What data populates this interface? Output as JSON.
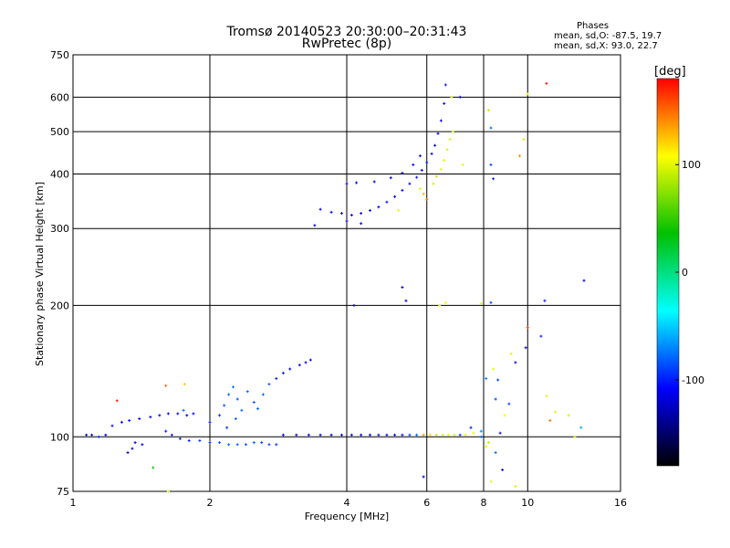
{
  "header": {
    "title": "Tromsø 20140523 20:30:00–20:31:43",
    "subtitle": "RwPretec (8p)"
  },
  "phases": {
    "heading": "Phases",
    "o_line": "mean, sd,O: -87.5, 19.7",
    "x_line": "mean, sd,X:  93.0, 22.7"
  },
  "colorbar": {
    "label": "[deg]",
    "ticks": [
      "100",
      "0",
      "-100"
    ],
    "tick_values": [
      100,
      0,
      -100
    ],
    "range": [
      -180,
      180
    ],
    "stops": [
      "#ff0000",
      "#ffff00",
      "#00c000",
      "#00ffff",
      "#0000ff",
      "#000000"
    ]
  },
  "chart_data": {
    "type": "scatter",
    "title": "Tromsø 20140523 20:30:00–20:31:43",
    "subtitle": "RwPretec (8p)",
    "xlabel": "Frequency [MHz]",
    "ylabel": "Stationary phase Virtual Height [km]",
    "xscale": "log2",
    "yscale": "log",
    "xlim": [
      1,
      16
    ],
    "ylim": [
      75,
      750
    ],
    "x_ticks": [
      1,
      2,
      4,
      6,
      8,
      10,
      16
    ],
    "x_tick_labels": [
      "1",
      "2",
      "4",
      "6",
      "8",
      "10",
      "16"
    ],
    "y_ticks": [
      75,
      100,
      200,
      300,
      400,
      500,
      600,
      750
    ],
    "y_tick_labels": [
      "75",
      "100",
      "200",
      "300",
      "400",
      "500",
      "600",
      "750"
    ],
    "grid": true,
    "color_scale": "phase [deg], -180 to 180",
    "points": [
      {
        "x": 1.07,
        "y": 101,
        "c": -120
      },
      {
        "x": 1.1,
        "y": 101,
        "c": -120
      },
      {
        "x": 1.14,
        "y": 100,
        "c": -95
      },
      {
        "x": 1.18,
        "y": 101,
        "c": -110
      },
      {
        "x": 1.22,
        "y": 106,
        "c": -105
      },
      {
        "x": 1.28,
        "y": 108,
        "c": -110
      },
      {
        "x": 1.33,
        "y": 109,
        "c": -110
      },
      {
        "x": 1.4,
        "y": 110,
        "c": -110
      },
      {
        "x": 1.48,
        "y": 111,
        "c": -110
      },
      {
        "x": 1.55,
        "y": 112,
        "c": -110
      },
      {
        "x": 1.62,
        "y": 113,
        "c": -105
      },
      {
        "x": 1.7,
        "y": 113,
        "c": -105
      },
      {
        "x": 1.78,
        "y": 112,
        "c": -110
      },
      {
        "x": 1.84,
        "y": 113,
        "c": -110
      },
      {
        "x": 1.35,
        "y": 94,
        "c": -120
      },
      {
        "x": 1.37,
        "y": 97,
        "c": -115
      },
      {
        "x": 1.42,
        "y": 96,
        "c": -110
      },
      {
        "x": 1.32,
        "y": 92,
        "c": -120
      },
      {
        "x": 1.6,
        "y": 103,
        "c": -100
      },
      {
        "x": 1.65,
        "y": 101,
        "c": -100
      },
      {
        "x": 1.72,
        "y": 99,
        "c": -95
      },
      {
        "x": 1.8,
        "y": 98,
        "c": -95
      },
      {
        "x": 1.9,
        "y": 98,
        "c": -90
      },
      {
        "x": 2.0,
        "y": 97,
        "c": -95
      },
      {
        "x": 2.1,
        "y": 97,
        "c": -85
      },
      {
        "x": 2.2,
        "y": 96,
        "c": -80
      },
      {
        "x": 2.3,
        "y": 96,
        "c": -80
      },
      {
        "x": 2.4,
        "y": 96,
        "c": -85
      },
      {
        "x": 2.5,
        "y": 97,
        "c": -80
      },
      {
        "x": 2.6,
        "y": 97,
        "c": -90
      },
      {
        "x": 2.7,
        "y": 96,
        "c": -90
      },
      {
        "x": 2.8,
        "y": 96,
        "c": -95
      },
      {
        "x": 2.0,
        "y": 108,
        "c": -100
      },
      {
        "x": 2.1,
        "y": 112,
        "c": -95
      },
      {
        "x": 2.15,
        "y": 118,
        "c": -85
      },
      {
        "x": 2.2,
        "y": 125,
        "c": -80
      },
      {
        "x": 2.25,
        "y": 130,
        "c": -75
      },
      {
        "x": 2.3,
        "y": 122,
        "c": -85
      },
      {
        "x": 2.35,
        "y": 115,
        "c": -80
      },
      {
        "x": 2.42,
        "y": 127,
        "c": -80
      },
      {
        "x": 2.5,
        "y": 120,
        "c": -85
      },
      {
        "x": 2.55,
        "y": 116,
        "c": -80
      },
      {
        "x": 2.62,
        "y": 125,
        "c": -80
      },
      {
        "x": 2.7,
        "y": 132,
        "c": -85
      },
      {
        "x": 2.8,
        "y": 136,
        "c": -100
      },
      {
        "x": 2.9,
        "y": 140,
        "c": -100
      },
      {
        "x": 3.0,
        "y": 143,
        "c": -110
      },
      {
        "x": 3.15,
        "y": 146,
        "c": -110
      },
      {
        "x": 3.25,
        "y": 148,
        "c": -110
      },
      {
        "x": 3.33,
        "y": 150,
        "c": -110
      },
      {
        "x": 2.18,
        "y": 105,
        "c": -95
      },
      {
        "x": 2.28,
        "y": 110,
        "c": -80
      },
      {
        "x": 2.9,
        "y": 101,
        "c": -110
      },
      {
        "x": 3.1,
        "y": 101,
        "c": -110
      },
      {
        "x": 3.3,
        "y": 101,
        "c": -110
      },
      {
        "x": 3.5,
        "y": 101,
        "c": -115
      },
      {
        "x": 3.7,
        "y": 101,
        "c": -115
      },
      {
        "x": 3.9,
        "y": 101,
        "c": -115
      },
      {
        "x": 4.1,
        "y": 101,
        "c": -115
      },
      {
        "x": 4.3,
        "y": 101,
        "c": -115
      },
      {
        "x": 4.5,
        "y": 101,
        "c": -115
      },
      {
        "x": 4.7,
        "y": 101,
        "c": -110
      },
      {
        "x": 4.9,
        "y": 101,
        "c": -110
      },
      {
        "x": 5.1,
        "y": 101,
        "c": -110
      },
      {
        "x": 5.3,
        "y": 101,
        "c": -105
      },
      {
        "x": 5.5,
        "y": 101,
        "c": -90
      },
      {
        "x": 5.7,
        "y": 101,
        "c": -80
      },
      {
        "x": 5.9,
        "y": 101,
        "c": 140
      },
      {
        "x": 6.1,
        "y": 101,
        "c": 120
      },
      {
        "x": 6.3,
        "y": 101,
        "c": 90
      },
      {
        "x": 6.5,
        "y": 101,
        "c": 95
      },
      {
        "x": 6.7,
        "y": 101,
        "c": 100
      },
      {
        "x": 6.9,
        "y": 101,
        "c": 95
      },
      {
        "x": 7.1,
        "y": 101,
        "c": -90
      },
      {
        "x": 7.3,
        "y": 101,
        "c": 100
      },
      {
        "x": 7.6,
        "y": 102,
        "c": 100
      },
      {
        "x": 7.9,
        "y": 103,
        "c": -70
      },
      {
        "x": 1.6,
        "y": 131,
        "c": 150
      },
      {
        "x": 1.76,
        "y": 132,
        "c": 125
      },
      {
        "x": 1.25,
        "y": 121,
        "c": 170
      },
      {
        "x": 1.62,
        "y": 75,
        "c": 95
      },
      {
        "x": 1.5,
        "y": 85,
        "c": 40
      },
      {
        "x": 1.75,
        "y": 115,
        "c": -80
      },
      {
        "x": 3.5,
        "y": 332,
        "c": -110
      },
      {
        "x": 3.7,
        "y": 327,
        "c": -115
      },
      {
        "x": 3.9,
        "y": 325,
        "c": -115
      },
      {
        "x": 4.1,
        "y": 322,
        "c": -110
      },
      {
        "x": 4.3,
        "y": 325,
        "c": -110
      },
      {
        "x": 4.5,
        "y": 330,
        "c": -105
      },
      {
        "x": 4.7,
        "y": 336,
        "c": -110
      },
      {
        "x": 4.9,
        "y": 345,
        "c": -105
      },
      {
        "x": 5.1,
        "y": 355,
        "c": -110
      },
      {
        "x": 5.3,
        "y": 367,
        "c": -110
      },
      {
        "x": 5.5,
        "y": 380,
        "c": -110
      },
      {
        "x": 5.7,
        "y": 393,
        "c": -100
      },
      {
        "x": 5.85,
        "y": 408,
        "c": -110
      },
      {
        "x": 6.0,
        "y": 425,
        "c": -100
      },
      {
        "x": 6.15,
        "y": 445,
        "c": -110
      },
      {
        "x": 6.25,
        "y": 465,
        "c": -110
      },
      {
        "x": 6.35,
        "y": 495,
        "c": -110
      },
      {
        "x": 6.45,
        "y": 530,
        "c": -110
      },
      {
        "x": 6.55,
        "y": 580,
        "c": -110
      },
      {
        "x": 6.6,
        "y": 640,
        "c": -100
      },
      {
        "x": 4.0,
        "y": 380,
        "c": -110
      },
      {
        "x": 4.2,
        "y": 382,
        "c": -110
      },
      {
        "x": 4.6,
        "y": 384,
        "c": -110
      },
      {
        "x": 5.0,
        "y": 392,
        "c": -110
      },
      {
        "x": 5.3,
        "y": 402,
        "c": -110
      },
      {
        "x": 5.6,
        "y": 420,
        "c": -110
      },
      {
        "x": 5.8,
        "y": 440,
        "c": -110
      },
      {
        "x": 4.0,
        "y": 312,
        "c": -110
      },
      {
        "x": 4.3,
        "y": 308,
        "c": -110
      },
      {
        "x": 3.4,
        "y": 305,
        "c": -110
      },
      {
        "x": 6.2,
        "y": 380,
        "c": 95
      },
      {
        "x": 6.3,
        "y": 395,
        "c": 90
      },
      {
        "x": 6.45,
        "y": 410,
        "c": 100
      },
      {
        "x": 6.55,
        "y": 430,
        "c": 100
      },
      {
        "x": 6.65,
        "y": 455,
        "c": 95
      },
      {
        "x": 6.75,
        "y": 480,
        "c": 95
      },
      {
        "x": 6.85,
        "y": 500,
        "c": 100
      },
      {
        "x": 5.8,
        "y": 370,
        "c": 100
      },
      {
        "x": 5.9,
        "y": 360,
        "c": 130
      },
      {
        "x": 6.0,
        "y": 350,
        "c": 150
      },
      {
        "x": 5.2,
        "y": 330,
        "c": 100
      },
      {
        "x": 7.1,
        "y": 600,
        "c": -110
      },
      {
        "x": 6.8,
        "y": 600,
        "c": 100
      },
      {
        "x": 7.2,
        "y": 420,
        "c": 100
      },
      {
        "x": 8.2,
        "y": 560,
        "c": 90
      },
      {
        "x": 8.3,
        "y": 510,
        "c": -80
      },
      {
        "x": 8.4,
        "y": 390,
        "c": -100
      },
      {
        "x": 8.3,
        "y": 420,
        "c": -90
      },
      {
        "x": 9.8,
        "y": 480,
        "c": 95
      },
      {
        "x": 9.6,
        "y": 440,
        "c": 140
      },
      {
        "x": 10.0,
        "y": 610,
        "c": 105
      },
      {
        "x": 11.0,
        "y": 645,
        "c": 175
      },
      {
        "x": 4.15,
        "y": 200,
        "c": -120
      },
      {
        "x": 5.3,
        "y": 220,
        "c": -110
      },
      {
        "x": 5.4,
        "y": 205,
        "c": -120
      },
      {
        "x": 6.4,
        "y": 200,
        "c": 100
      },
      {
        "x": 6.6,
        "y": 203,
        "c": 100
      },
      {
        "x": 7.9,
        "y": 202,
        "c": 100
      },
      {
        "x": 8.3,
        "y": 203,
        "c": -90
      },
      {
        "x": 10.9,
        "y": 205,
        "c": -100
      },
      {
        "x": 13.3,
        "y": 228,
        "c": -120
      },
      {
        "x": 10.0,
        "y": 178,
        "c": 160
      },
      {
        "x": 9.9,
        "y": 160,
        "c": -110
      },
      {
        "x": 10.7,
        "y": 170,
        "c": -100
      },
      {
        "x": 8.4,
        "y": 143,
        "c": 100
      },
      {
        "x": 8.6,
        "y": 135,
        "c": -90
      },
      {
        "x": 9.2,
        "y": 155,
        "c": 100
      },
      {
        "x": 9.4,
        "y": 148,
        "c": -110
      },
      {
        "x": 8.1,
        "y": 136,
        "c": -70
      },
      {
        "x": 8.5,
        "y": 122,
        "c": -90
      },
      {
        "x": 9.1,
        "y": 119,
        "c": -90
      },
      {
        "x": 8.9,
        "y": 112,
        "c": 110
      },
      {
        "x": 11.0,
        "y": 124,
        "c": 100
      },
      {
        "x": 11.2,
        "y": 109,
        "c": 150
      },
      {
        "x": 11.5,
        "y": 114,
        "c": 100
      },
      {
        "x": 12.3,
        "y": 112,
        "c": 95
      },
      {
        "x": 12.7,
        "y": 100,
        "c": 100
      },
      {
        "x": 13.1,
        "y": 105,
        "c": -60
      },
      {
        "x": 8.1,
        "y": 95,
        "c": 100
      },
      {
        "x": 8.2,
        "y": 97,
        "c": 90
      },
      {
        "x": 8.5,
        "y": 92,
        "c": -80
      },
      {
        "x": 8.7,
        "y": 102,
        "c": -110
      },
      {
        "x": 7.9,
        "y": 100,
        "c": -80
      },
      {
        "x": 8.8,
        "y": 84,
        "c": -110
      },
      {
        "x": 9.4,
        "y": 77,
        "c": 95
      },
      {
        "x": 8.3,
        "y": 79,
        "c": 100
      },
      {
        "x": 5.9,
        "y": 81,
        "c": -110
      },
      {
        "x": 7.5,
        "y": 105,
        "c": -100
      }
    ]
  }
}
